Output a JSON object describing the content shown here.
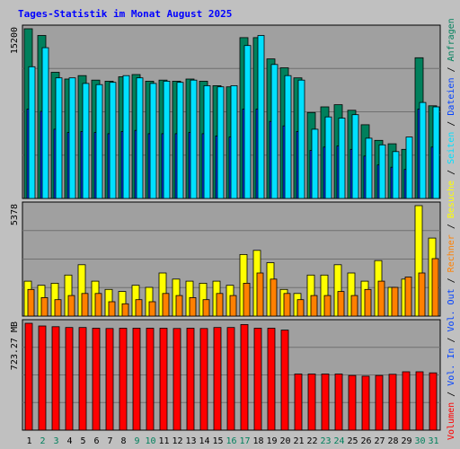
{
  "chart_data": {
    "type": "bar",
    "title": "Tages-Statistik im Monat August 2025",
    "categories": [
      "1",
      "2",
      "3",
      "4",
      "5",
      "6",
      "7",
      "8",
      "9",
      "10",
      "11",
      "12",
      "13",
      "14",
      "15",
      "16",
      "17",
      "18",
      "19",
      "20",
      "21",
      "22",
      "23",
      "24",
      "25",
      "26",
      "27",
      "28",
      "29",
      "30",
      "31"
    ],
    "weekend_days": [
      "2",
      "3",
      "9",
      "10",
      "16",
      "17",
      "23",
      "24",
      "30",
      "31"
    ],
    "colors": {
      "background": "#c0c0c0",
      "plot": "#a0a0a0",
      "title": "#0000ff",
      "hits": "#00805c",
      "files": "#0040ff",
      "pages": "#00e0ff",
      "visits": "#ffff00",
      "sites": "#ff8000",
      "kbytes": "#ff0000",
      "weekday_label": "#000000",
      "weekend_label": "#00805c"
    },
    "panels": [
      {
        "id": "requests",
        "max_label": "15200",
        "ymax": 15200,
        "series": [
          {
            "key": "hits",
            "name": "Anfragen",
            "values": [
              15200,
              14600,
              11300,
              10700,
              11000,
              10600,
              10500,
              10900,
              11100,
              10500,
              10600,
              10500,
              10700,
              10500,
              10100,
              10000,
              14400,
              14400,
              12500,
              11700,
              10800,
              7700,
              8200,
              8400,
              7900,
              6600,
              5200,
              4900,
              4400,
              12600,
              8300
            ]
          },
          {
            "key": "files",
            "name": "Dateien",
            "values": [
              8000,
              7800,
              6200,
              5900,
              6000,
              5900,
              5800,
              6000,
              6100,
              5800,
              5800,
              5800,
              5900,
              5800,
              5600,
              5500,
              8000,
              8000,
              6900,
              6500,
              6000,
              4300,
              4600,
              4700,
              4400,
              3800,
              3000,
              2800,
              2600,
              8000,
              4600
            ]
          },
          {
            "key": "pages",
            "name": "Seiten",
            "values": [
              11800,
              13500,
              10800,
              10800,
              10300,
              10200,
              10400,
              11000,
              10800,
              10300,
              10500,
              10400,
              10600,
              10100,
              10000,
              10100,
              13700,
              14600,
              12000,
              11000,
              10600,
              6200,
              7300,
              7200,
              7500,
              5400,
              4800,
              4200,
              5500,
              8600,
              8200
            ]
          }
        ]
      },
      {
        "id": "visits",
        "max_label": "5378",
        "ymax": 5378,
        "series": [
          {
            "key": "visits",
            "name": "Besuche",
            "values": [
              1700,
              1500,
              1600,
              2000,
              2500,
              1700,
              1300,
              1200,
              1500,
              1400,
              2100,
              1800,
              1700,
              1600,
              1700,
              1500,
              3000,
              3200,
              2600,
              1300,
              1100,
              2000,
              2000,
              2500,
              2100,
              1700,
              2700,
              1400,
              1800,
              5378,
              3800
            ]
          },
          {
            "key": "sites",
            "name": "Rechner",
            "values": [
              1300,
              900,
              800,
              1000,
              1100,
              1100,
              700,
              600,
              800,
              700,
              1100,
              1000,
              900,
              800,
              1100,
              1000,
              1600,
              2100,
              1800,
              1100,
              800,
              1000,
              1000,
              1200,
              1000,
              1300,
              1700,
              1400,
              1900,
              2100,
              2800
            ]
          }
        ]
      },
      {
        "id": "volume",
        "max_label": "723.27 MB",
        "ymax": 723.27,
        "series": [
          {
            "key": "kbytes",
            "name": "Volumen",
            "values": [
              723.27,
              705,
              700,
              695,
              695,
              690,
              688,
              690,
              690,
              690,
              690,
              688,
              690,
              688,
              695,
              695,
              715,
              690,
              690,
              677,
              380,
              380,
              380,
              380,
              370,
              365,
              370,
              378,
              395,
              395,
              388
            ]
          }
        ]
      }
    ],
    "legend": {
      "top": [
        "Anfragen",
        "/",
        "Dateien",
        "/",
        "Seiten",
        "/",
        "Besuche",
        "/",
        "Rechner",
        "/",
        "Vol. Out",
        "/",
        "Vol. In",
        "/",
        "Volumen"
      ]
    }
  }
}
